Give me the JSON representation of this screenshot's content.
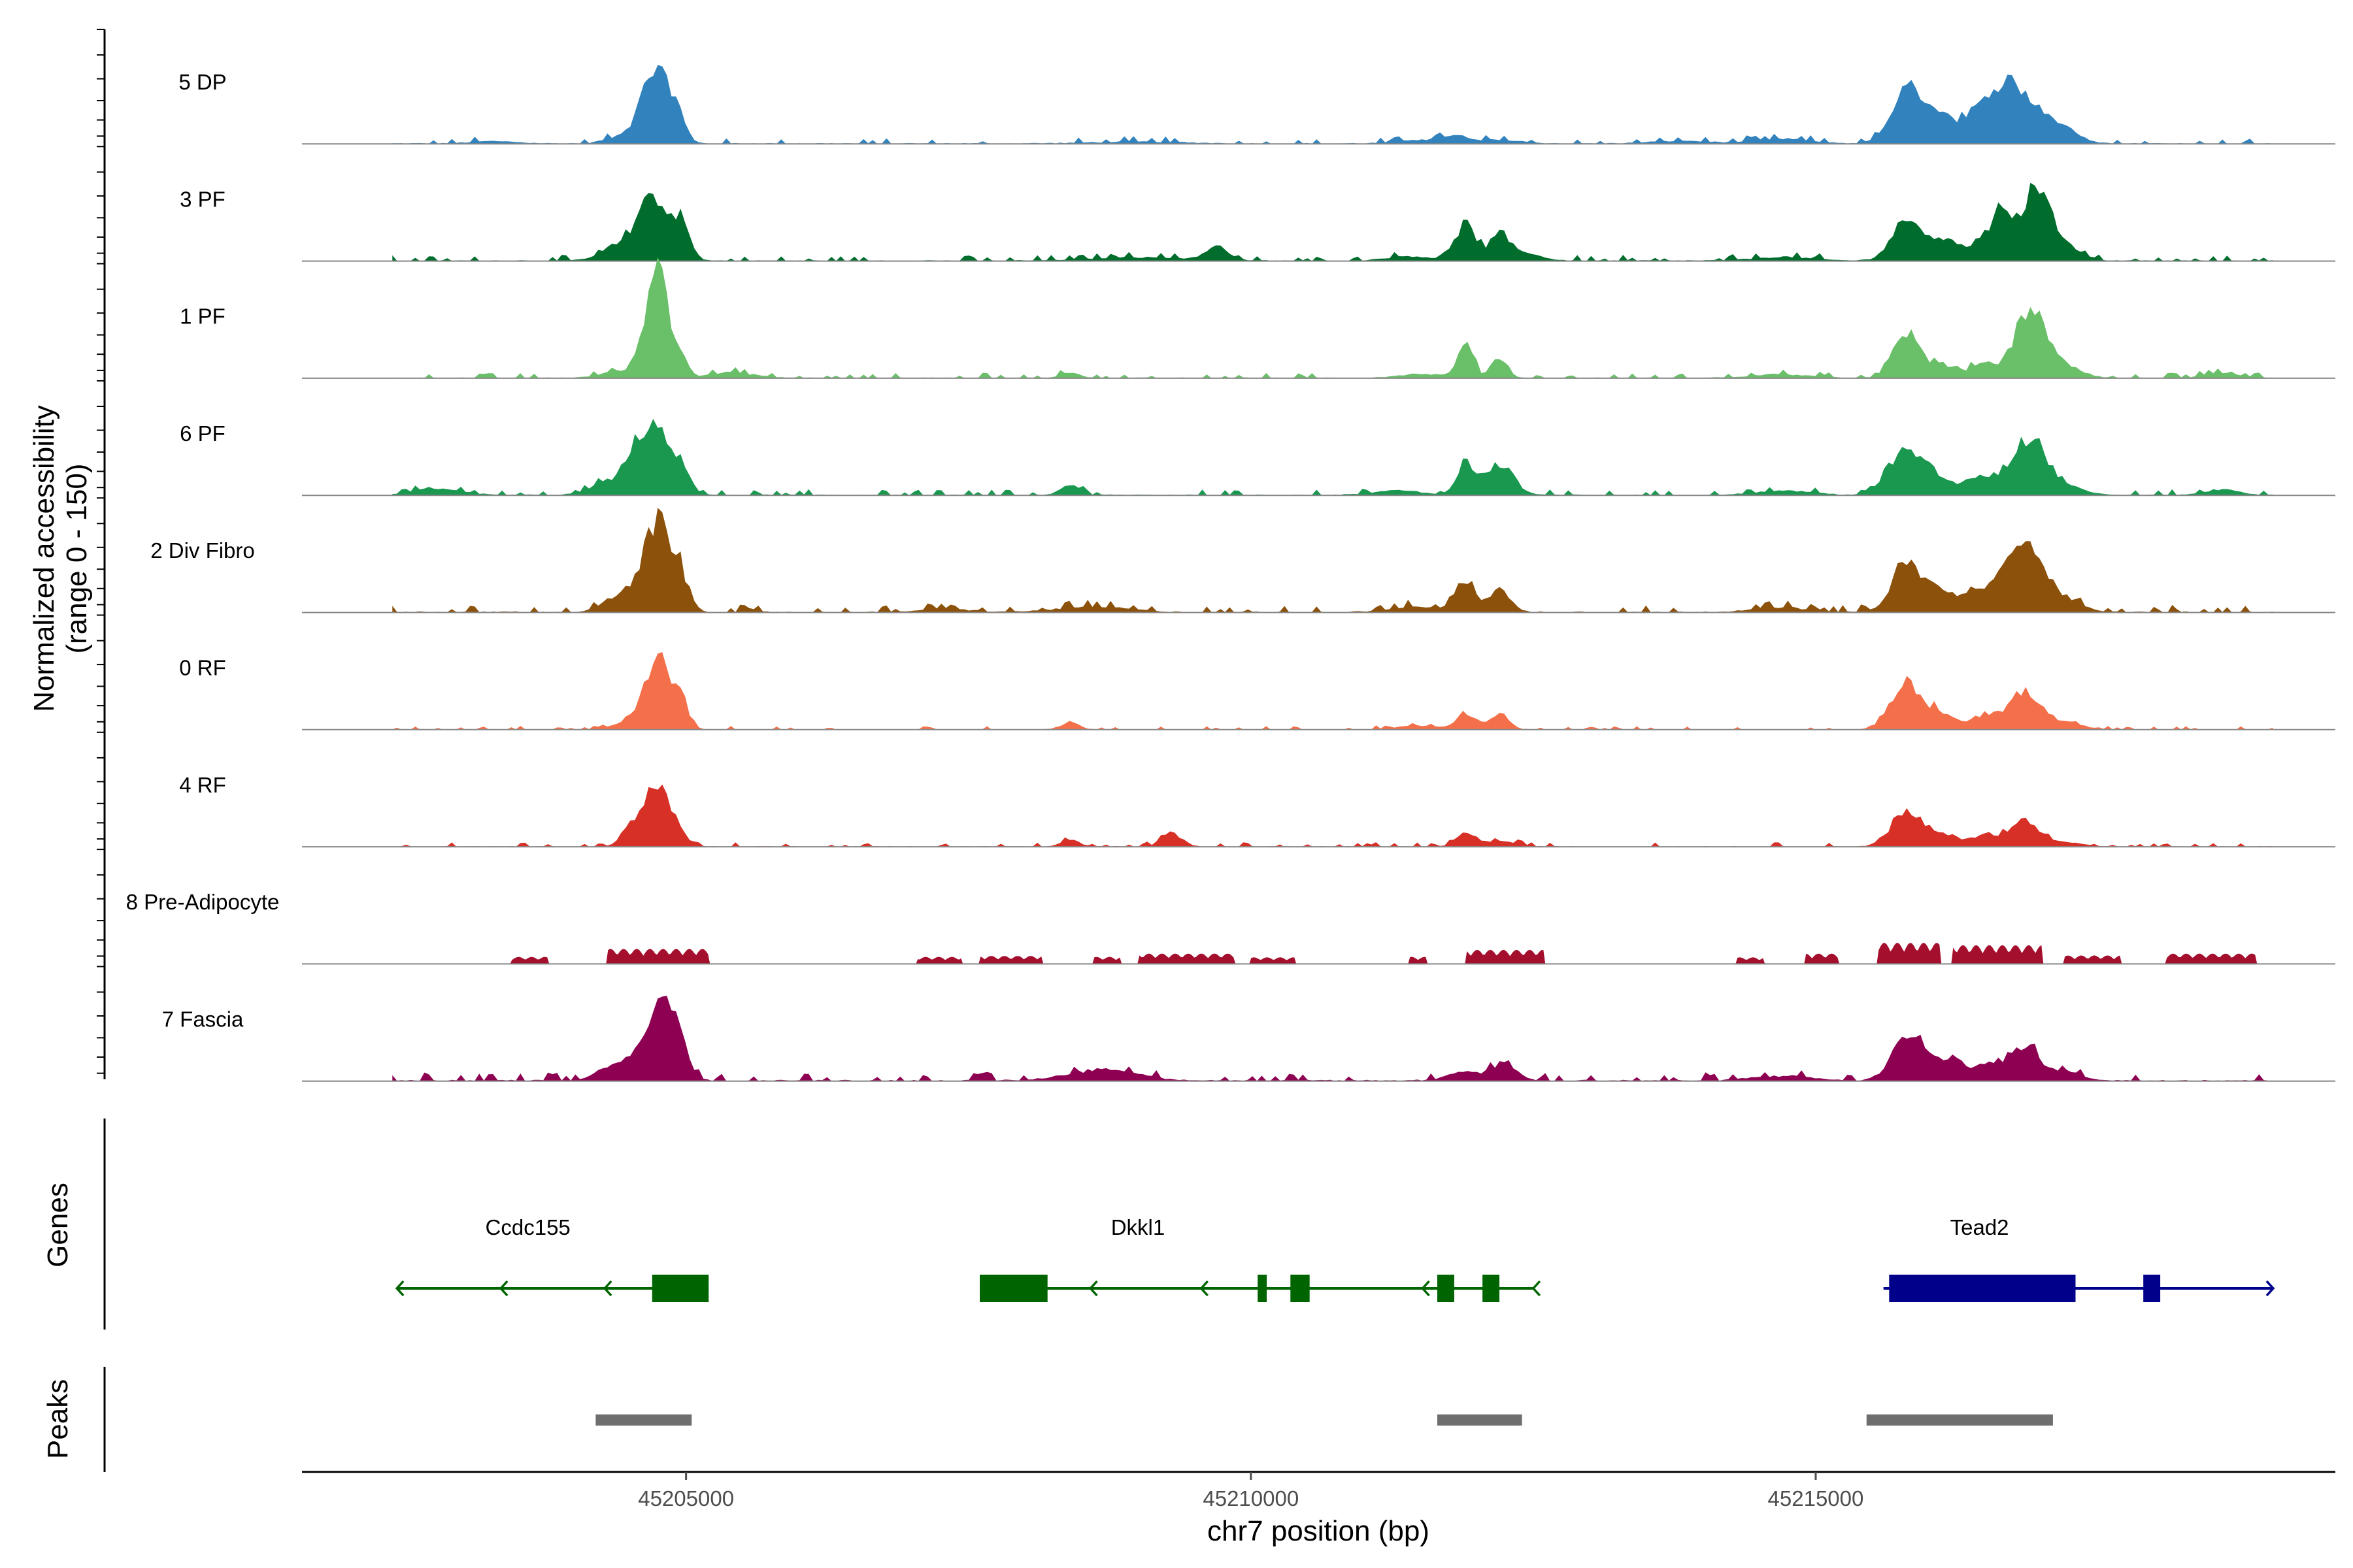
{
  "chart_data": {
    "type": "area",
    "title": "",
    "ylabel": [
      "Normalized accessibility",
      "(range 0 - 150)"
    ],
    "xlabel": "chr7 position (bp)",
    "xlim": [
      45201600,
      45219600
    ],
    "ylim": [
      0,
      150
    ],
    "x_ticks": [
      45205000,
      45210000,
      45215000
    ],
    "x_tick_labels": [
      "45205000",
      "45210000",
      "45215000"
    ],
    "panel_labels": {
      "genes": "Genes",
      "peaks": "Peaks"
    },
    "tracks": [
      {
        "name": "5 DP",
        "color": "#3182bd",
        "baseline": 20,
        "peaks": [
          [
            45204710,
            150,
            110
          ],
          [
            45204900,
            75,
            80
          ],
          [
            45204450,
            15,
            150
          ],
          [
            45203300,
            5,
            200
          ],
          [
            45209000,
            4,
            400
          ],
          [
            45211800,
            14,
            120
          ],
          [
            45211500,
            8,
            200
          ],
          [
            45212200,
            8,
            200
          ],
          [
            45213800,
            6,
            250
          ],
          [
            45215800,
            95,
            140
          ],
          [
            45216050,
            60,
            180
          ],
          [
            45216500,
            55,
            180
          ],
          [
            45216700,
            95,
            150
          ],
          [
            45216950,
            55,
            150
          ],
          [
            45217200,
            25,
            150
          ],
          [
            45214700,
            10,
            250
          ]
        ]
      },
      {
        "name": "3 PF",
        "color": "#006d2c",
        "baseline": 20,
        "peaks": [
          [
            45204700,
            130,
            130
          ],
          [
            45204950,
            80,
            80
          ],
          [
            45204400,
            30,
            150
          ],
          [
            45209700,
            30,
            100
          ],
          [
            45209000,
            8,
            400
          ],
          [
            45211900,
            80,
            90
          ],
          [
            45212200,
            45,
            90
          ],
          [
            45212400,
            18,
            150
          ],
          [
            45211400,
            10,
            200
          ],
          [
            45215800,
            85,
            130
          ],
          [
            45216100,
            40,
            150
          ],
          [
            45216500,
            40,
            150
          ],
          [
            45216650,
            75,
            100
          ],
          [
            45216950,
            160,
            120
          ],
          [
            45217200,
            30,
            150
          ],
          [
            45214700,
            8,
            250
          ]
        ]
      },
      {
        "name": "1 PF",
        "color": "#6abf69",
        "baseline": 18,
        "peaks": [
          [
            45204780,
            215,
            70
          ],
          [
            45204650,
            110,
            80
          ],
          [
            45204950,
            55,
            60
          ],
          [
            45204400,
            15,
            150
          ],
          [
            45205400,
            12,
            200
          ],
          [
            45208400,
            12,
            80
          ],
          [
            45211900,
            70,
            70
          ],
          [
            45212200,
            45,
            70
          ],
          [
            45211500,
            8,
            200
          ],
          [
            45215800,
            100,
            110
          ],
          [
            45216100,
            28,
            130
          ],
          [
            45216500,
            30,
            130
          ],
          [
            45216900,
            150,
            130
          ],
          [
            45217200,
            25,
            150
          ],
          [
            45214700,
            8,
            250
          ],
          [
            45218600,
            10,
            150
          ]
        ]
      },
      {
        "name": "6 PF",
        "color": "#1a9850",
        "baseline": 20,
        "peaks": [
          [
            45204680,
            150,
            150
          ],
          [
            45204950,
            55,
            80
          ],
          [
            45204300,
            25,
            150
          ],
          [
            45202800,
            15,
            200
          ],
          [
            45208400,
            22,
            80
          ],
          [
            45211900,
            70,
            80
          ],
          [
            45212200,
            70,
            120
          ],
          [
            45211300,
            10,
            200
          ],
          [
            45215750,
            85,
            130
          ],
          [
            45216000,
            50,
            130
          ],
          [
            45216500,
            40,
            200
          ],
          [
            45216900,
            120,
            140
          ],
          [
            45217200,
            20,
            150
          ],
          [
            45214700,
            10,
            250
          ],
          [
            45218600,
            12,
            150
          ]
        ]
      },
      {
        "name": "2 Div Fibro",
        "color": "#8c510a",
        "baseline": 25,
        "peaks": [
          [
            45204750,
            190,
            120
          ],
          [
            45204950,
            60,
            80
          ],
          [
            45204450,
            40,
            150
          ],
          [
            45207300,
            8,
            200
          ],
          [
            45208600,
            12,
            300
          ],
          [
            45211900,
            70,
            80
          ],
          [
            45212200,
            50,
            90
          ],
          [
            45211500,
            12,
            250
          ],
          [
            45215800,
            100,
            130
          ],
          [
            45216100,
            45,
            150
          ],
          [
            45216500,
            45,
            150
          ],
          [
            45216850,
            150,
            150
          ],
          [
            45217200,
            30,
            150
          ],
          [
            45214700,
            10,
            250
          ]
        ]
      },
      {
        "name": "0 RF",
        "color": "#f4704a",
        "baseline": 12,
        "peaks": [
          [
            45204750,
            150,
            120
          ],
          [
            45204950,
            45,
            70
          ],
          [
            45204500,
            15,
            150
          ],
          [
            45208400,
            15,
            80
          ],
          [
            45211900,
            35,
            80
          ],
          [
            45212200,
            35,
            80
          ],
          [
            45211500,
            8,
            200
          ],
          [
            45215800,
            100,
            130
          ],
          [
            45216100,
            35,
            130
          ],
          [
            45216500,
            30,
            130
          ],
          [
            45216850,
            80,
            140
          ],
          [
            45217200,
            15,
            150
          ]
        ]
      },
      {
        "name": "4 RF",
        "color": "#d73027",
        "baseline": 15,
        "peaks": [
          [
            45204750,
            130,
            110
          ],
          [
            45204550,
            45,
            100
          ],
          [
            45204950,
            20,
            70
          ],
          [
            45208400,
            15,
            80
          ],
          [
            45209300,
            30,
            90
          ],
          [
            45211900,
            30,
            80
          ],
          [
            45212200,
            12,
            150
          ],
          [
            45215800,
            75,
            130
          ],
          [
            45216100,
            25,
            130
          ],
          [
            45216500,
            25,
            130
          ],
          [
            45216850,
            55,
            130
          ],
          [
            45217200,
            10,
            150
          ]
        ]
      },
      {
        "name": "8 Pre-Adipocyte",
        "color": "#a50f2e",
        "style": "blocky",
        "segments": [
          [
            45203450,
            45203780,
            15
          ],
          [
            45204300,
            45205200,
            32
          ],
          [
            45207050,
            45207450,
            15
          ],
          [
            45207600,
            45208150,
            17
          ],
          [
            45208600,
            45208850,
            15
          ],
          [
            45209000,
            45209850,
            22
          ],
          [
            45210000,
            45210400,
            14
          ],
          [
            45211400,
            45211550,
            15
          ],
          [
            45211900,
            45212600,
            30
          ],
          [
            45214300,
            45214550,
            14
          ],
          [
            45214900,
            45215200,
            22
          ],
          [
            45215550,
            45216100,
            45
          ],
          [
            45216200,
            45217000,
            40
          ],
          [
            45217200,
            45217700,
            18
          ],
          [
            45218100,
            45218900,
            22
          ]
        ]
      },
      {
        "name": "7 Fascia",
        "color": "#8e0152",
        "baseline": 30,
        "peaks": [
          [
            45204760,
            170,
            120
          ],
          [
            45204950,
            60,
            80
          ],
          [
            45204400,
            40,
            150
          ],
          [
            45208700,
            25,
            300
          ],
          [
            45212250,
            40,
            100
          ],
          [
            45211900,
            20,
            150
          ],
          [
            45215800,
            90,
            130
          ],
          [
            45216100,
            40,
            150
          ],
          [
            45216500,
            35,
            150
          ],
          [
            45216850,
            70,
            130
          ],
          [
            45217200,
            20,
            150
          ],
          [
            45214700,
            10,
            250
          ]
        ]
      }
    ],
    "genes": [
      {
        "name": "Ccdc155",
        "color": "#006400",
        "strand": "-",
        "start": 45202440,
        "end": 45205200,
        "exons": [
          [
            45204700,
            45205200
          ]
        ]
      },
      {
        "name": "Dkkl1",
        "color": "#006400",
        "strand": "-",
        "start": 45207600,
        "end": 45212500,
        "exons": [
          [
            45207600,
            45208200
          ],
          [
            45210060,
            45210140
          ],
          [
            45210350,
            45210520
          ],
          [
            45211650,
            45211800
          ],
          [
            45212050,
            45212200
          ]
        ]
      },
      {
        "name": "Tead2",
        "color": "#00008b",
        "strand": "+",
        "start": 45215600,
        "end": 45219050,
        "exons": [
          [
            45215650,
            45217300
          ],
          [
            45217900,
            45218050
          ]
        ]
      }
    ],
    "peaks_track": {
      "color": "#6e6e6e",
      "regions": [
        [
          45204200,
          45205050
        ],
        [
          45211650,
          45212400
        ],
        [
          45215450,
          45217100
        ]
      ]
    }
  }
}
